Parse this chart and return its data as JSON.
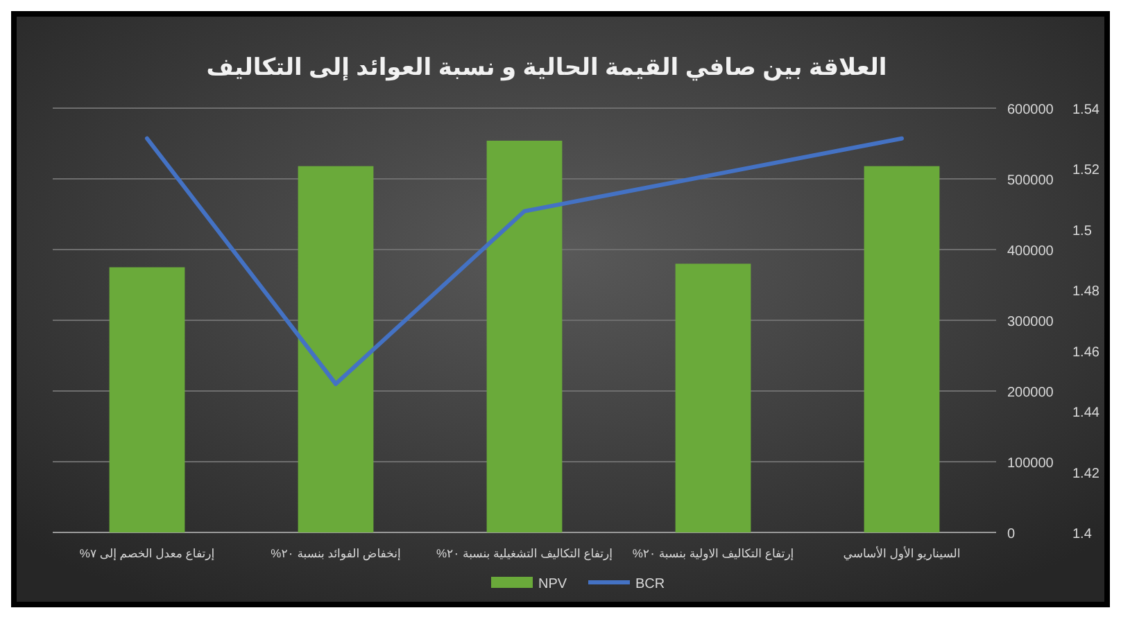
{
  "chart_data": {
    "type": "bar",
    "title": "العلاقة بين صافي القيمة الحالية و نسبة العوائد إلى التكاليف",
    "categories": [
      "إرتفاع معدل الخصم إلى ٧%",
      "إنخفاض الفوائد بنسبة ٢٠%",
      "إرتفاع التكاليف التشغيلية بنسبة ٢٠%",
      "إرتفاع التكاليف الاولية بنسبة ٢٠%",
      "السيناريو الأول الأساسي"
    ],
    "series": [
      {
        "name": "NPV",
        "color": "#6aaa3a",
        "values": [
          375000,
          518000,
          554000,
          380000,
          518000
        ]
      },
      {
        "name": "BCR",
        "type": "line",
        "axis": "y2",
        "color": "#4472c4",
        "values": [
          1.53,
          1.449,
          1.506,
          1.518,
          1.53
        ]
      }
    ],
    "ylim": [
      0,
      600000
    ],
    "yticks": [
      0,
      100000,
      200000,
      300000,
      400000,
      500000,
      600000
    ],
    "y2lim": [
      1.4,
      1.54
    ],
    "y2ticks": [
      1.4,
      1.42,
      1.44,
      1.46,
      1.48,
      1.5,
      1.52,
      1.54
    ],
    "grid": "y",
    "legend": "bottom"
  }
}
